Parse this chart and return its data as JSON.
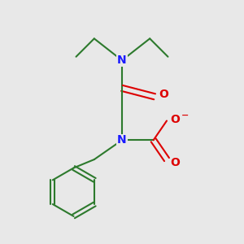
{
  "bg_color": "#e8e8e8",
  "bond_color": "#2d7a2d",
  "N_color": "#1a1aff",
  "O_color": "#dd0000",
  "line_width": 1.5,
  "figsize": [
    3.0,
    3.0
  ],
  "dpi": 100,
  "xlim": [
    0,
    10
  ],
  "ylim": [
    0,
    10
  ]
}
